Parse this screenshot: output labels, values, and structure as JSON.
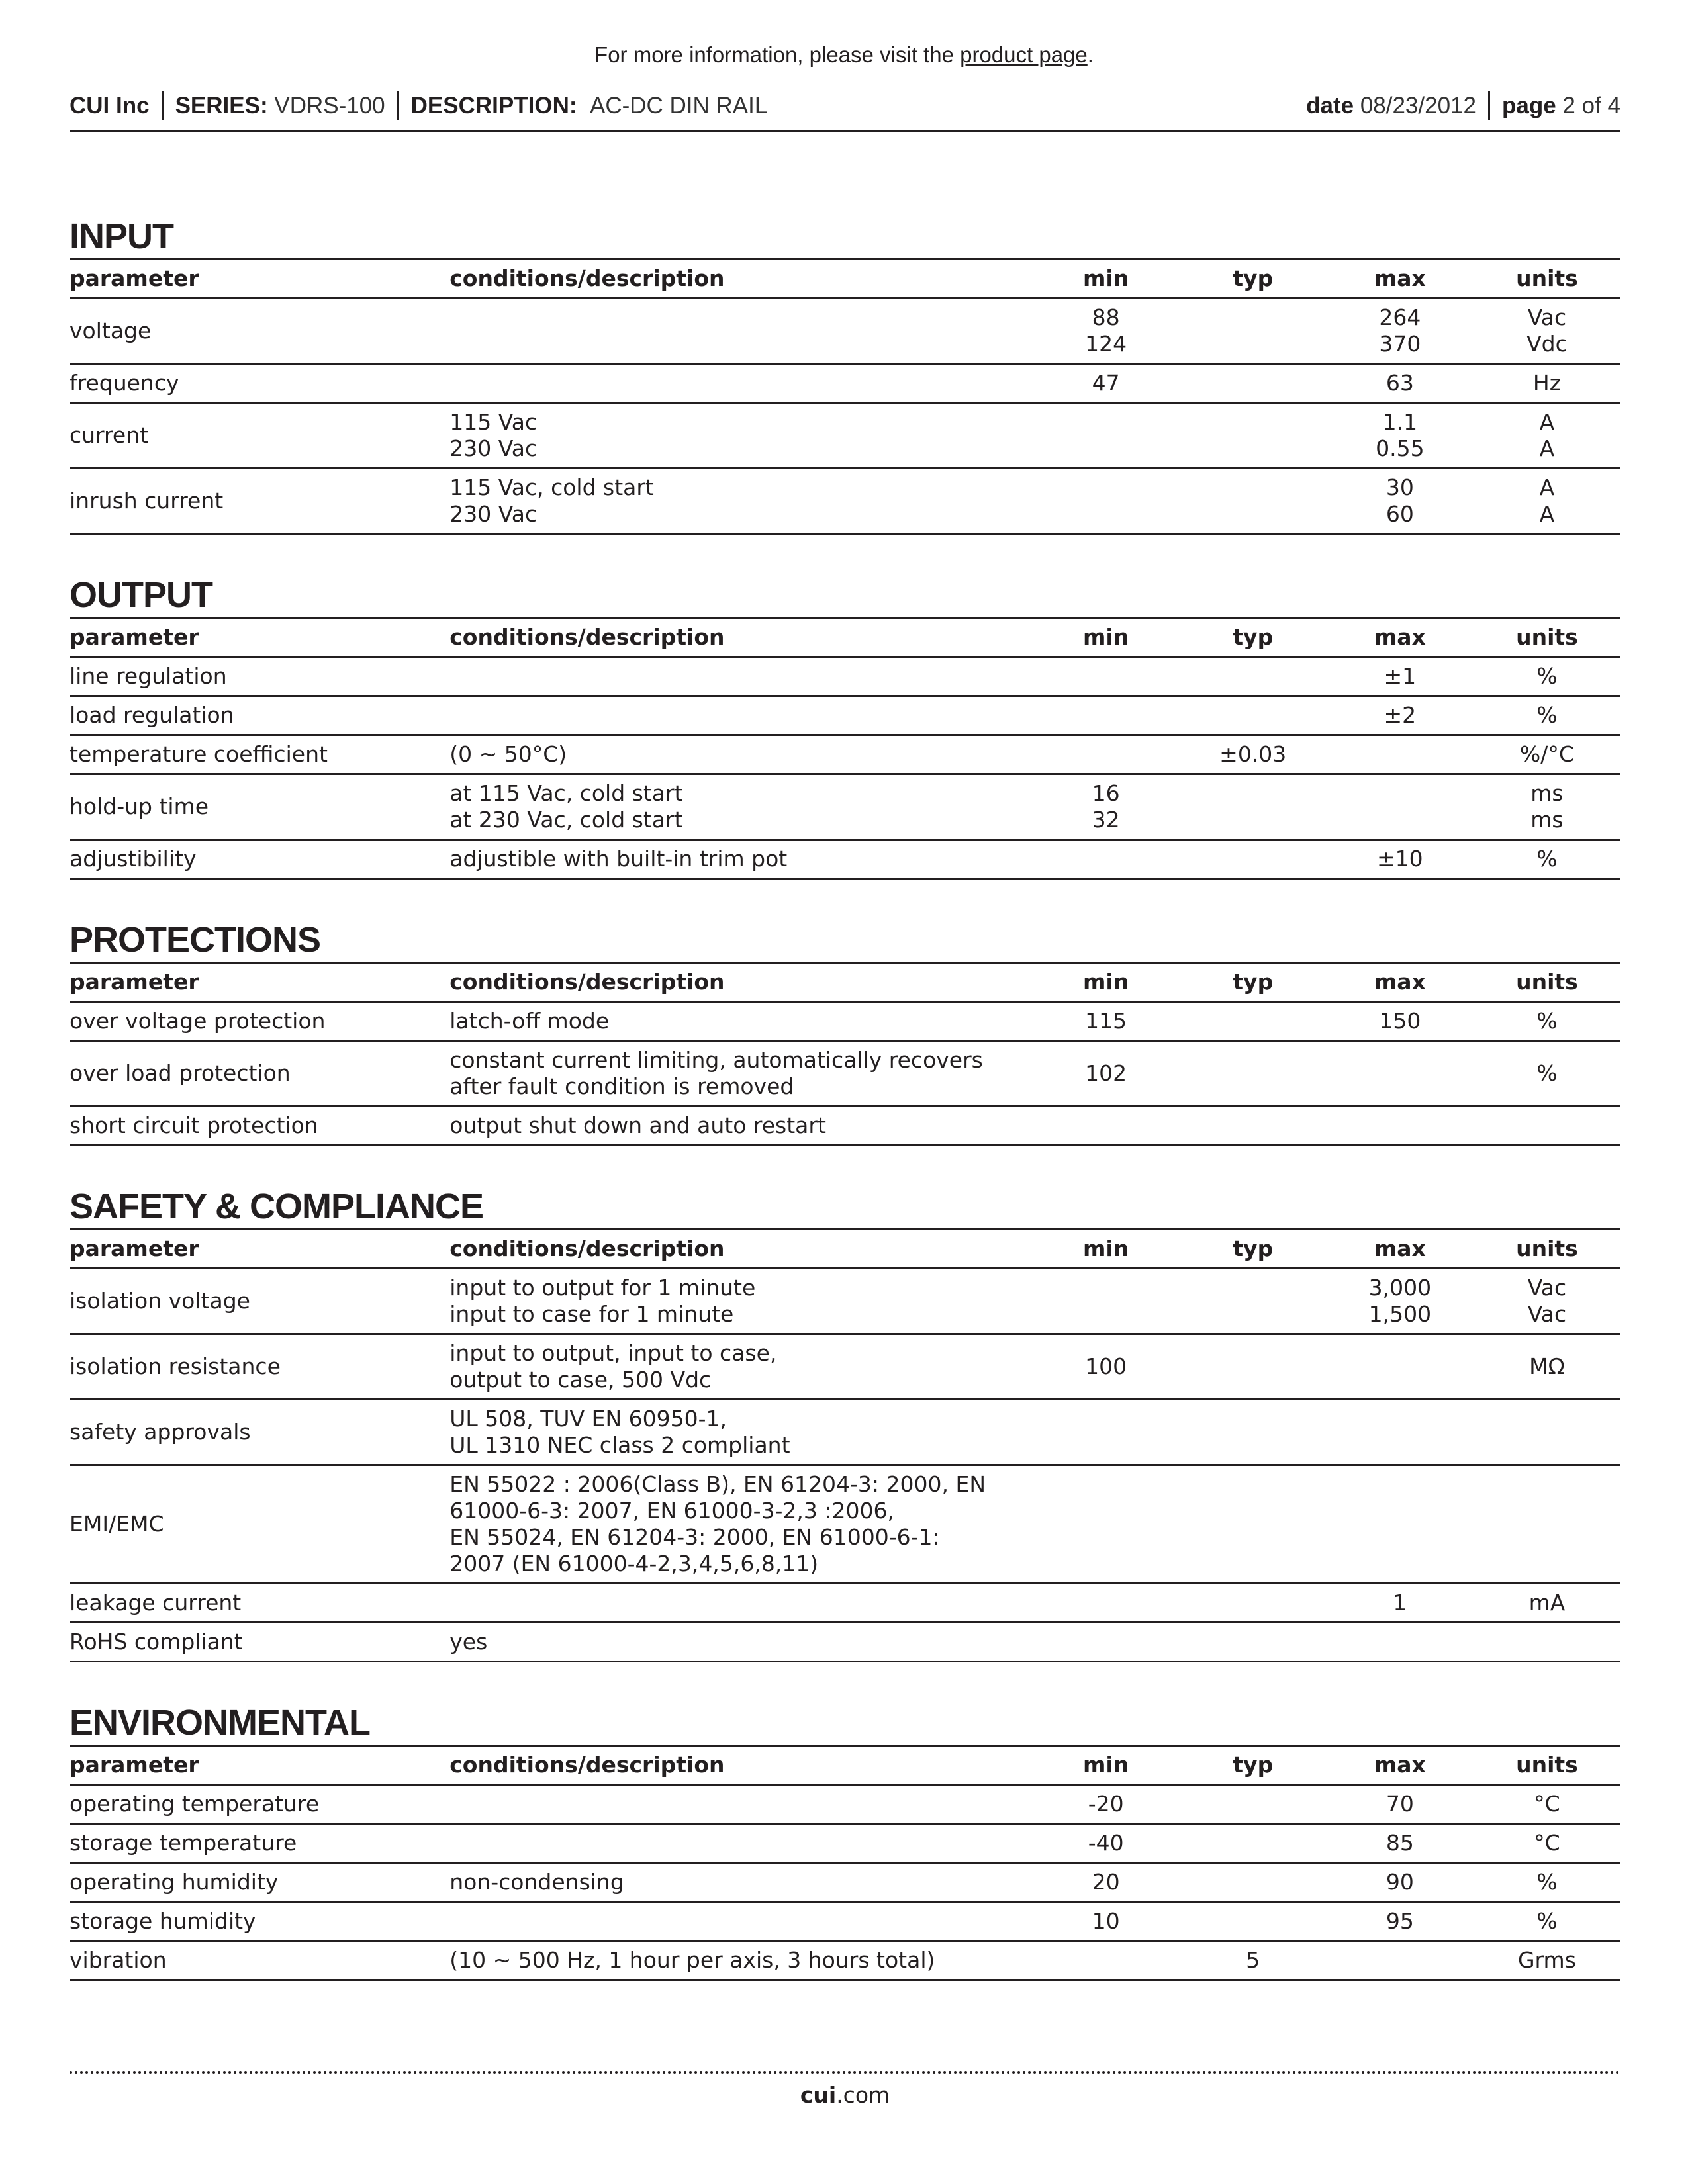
{
  "notice": {
    "text": "For more information, please visit the ",
    "link": "product page",
    "end": "."
  },
  "header": {
    "company": "CUI Inc",
    "series_label": "SERIES:",
    "series": "VDRS-100",
    "description_label": "DESCRIPTION:",
    "description": "AC-DC DIN RAIL",
    "date_label": "date",
    "date": "08/23/2012",
    "page_label": "page",
    "page": "2 of 4"
  },
  "columns": [
    "parameter",
    "conditions/description",
    "min",
    "typ",
    "max",
    "units"
  ],
  "sections": [
    {
      "title": "INPUT",
      "rows": [
        [
          "voltage",
          "",
          "88\n124",
          "",
          "264\n370",
          "Vac\nVdc"
        ],
        [
          "frequency",
          "",
          "47",
          "",
          "63",
          "Hz"
        ],
        [
          "current",
          "115 Vac\n230 Vac",
          "",
          "",
          "1.1\n0.55",
          "A\nA"
        ],
        [
          "inrush current",
          "115 Vac, cold start\n230 Vac",
          "",
          "",
          "30\n60",
          "A\nA"
        ]
      ]
    },
    {
      "title": "OUTPUT",
      "rows": [
        [
          "line regulation",
          "",
          "",
          "",
          "±1",
          "%"
        ],
        [
          "load regulation",
          "",
          "",
          "",
          "±2",
          "%"
        ],
        [
          "temperature coefficient",
          "(0 ~ 50°C)",
          "",
          "±0.03",
          "",
          "%/°C"
        ],
        [
          "hold-up time",
          "at 115 Vac, cold start\nat 230 Vac, cold start",
          "16\n32",
          "",
          "",
          "ms\nms"
        ],
        [
          "adjustibility",
          "adjustible with built-in trim pot",
          "",
          "",
          "±10",
          "%"
        ]
      ]
    },
    {
      "title": "PROTECTIONS",
      "rows": [
        [
          "over voltage protection",
          "latch-off mode",
          "115",
          "",
          "150",
          "%"
        ],
        [
          "over load protection",
          "constant current limiting, automatically  recovers\nafter fault condition is removed",
          "102",
          "",
          "",
          "%"
        ],
        [
          "short circuit protection",
          "output shut down and auto restart",
          "",
          "",
          "",
          ""
        ]
      ]
    },
    {
      "title": "SAFETY & COMPLIANCE",
      "rows": [
        [
          "isolation voltage",
          "input to output for 1 minute\ninput to case for 1 minute",
          "",
          "",
          "3,000\n1,500",
          "Vac\nVac"
        ],
        [
          "isolation resistance",
          "input to output, input to case,\noutput to case, 500 Vdc",
          "100",
          "",
          "",
          "MΩ"
        ],
        [
          "safety approvals",
          "UL 508, TUV EN 60950-1,\nUL 1310 NEC class 2 compliant",
          "",
          "",
          "",
          ""
        ],
        [
          "EMI/EMC",
          "EN 55022 : 2006(Class B), EN 61204-3: 2000, EN\n61000-6-3: 2007, EN 61000-3-2,3 :2006,\nEN 55024, EN 61204-3: 2000, EN 61000-6-1:\n2007 (EN 61000-4-2,3,4,5,6,8,11)",
          "",
          "",
          "",
          ""
        ],
        [
          "leakage current",
          "",
          "",
          "",
          "1",
          "mA"
        ],
        [
          "RoHS compliant",
          "yes",
          "",
          "",
          "",
          ""
        ]
      ]
    },
    {
      "title": "ENVIRONMENTAL",
      "rows": [
        [
          "operating temperature",
          "",
          "-20",
          "",
          "70",
          "°C"
        ],
        [
          "storage temperature",
          "",
          "-40",
          "",
          "85",
          "°C"
        ],
        [
          "operating humidity",
          "non-condensing",
          "20",
          "",
          "90",
          "%"
        ],
        [
          "storage humidity",
          "",
          "10",
          "",
          "95",
          "%"
        ],
        [
          "vibration",
          "(10 ~ 500 Hz, 1 hour per axis, 3 hours total)",
          "",
          "5",
          "",
          "Grms"
        ]
      ]
    }
  ],
  "footer": {
    "bold": "cui",
    "rest": ".com"
  }
}
